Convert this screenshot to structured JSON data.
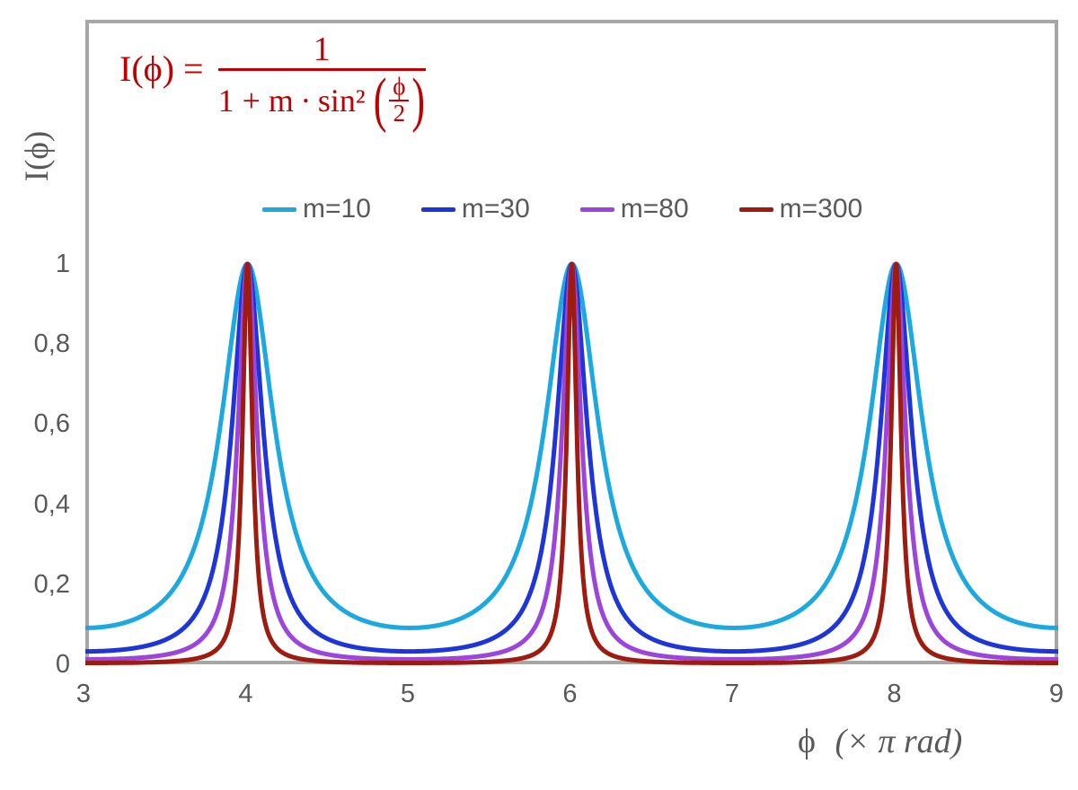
{
  "figure": {
    "formula": {
      "lhs": "I(ϕ) =",
      "numerator": "1",
      "den_prefix": "1 + m ∙ sin²",
      "inner_num": "ϕ",
      "inner_den": "2",
      "paren_open": "(",
      "paren_close": ")",
      "color": "#C00000"
    },
    "y_axis_title": "I(ϕ)",
    "x_axis_title": {
      "part_upright": "ϕ",
      "part_open": "(×",
      "part_italic": "π rad",
      "part_close": ")"
    }
  },
  "chart_data": {
    "type": "line",
    "title": "",
    "xlabel": "ϕ (× π rad)",
    "ylabel": "I(ϕ)",
    "function": "I(phi) = 1 / (1 + m * sin^2(phi/2)), x axis in units of pi rad",
    "xlim": [
      3,
      9
    ],
    "ylim": [
      0,
      1.61
    ],
    "x_ticks": [
      3,
      4,
      5,
      6,
      7,
      8,
      9
    ],
    "x_tick_labels": [
      "3",
      "4",
      "5",
      "6",
      "7",
      "8",
      "9"
    ],
    "y_ticks": [
      0,
      0.2,
      0.4,
      0.6,
      0.8,
      1
    ],
    "y_tick_labels": [
      "0",
      "0,2",
      "0,4",
      "0,6",
      "0,8",
      "1"
    ],
    "grid": false,
    "legend_position": "top-center",
    "peaks_at_x": [
      4,
      6,
      8
    ],
    "peak_value": 1,
    "series": [
      {
        "name": "m=10",
        "m": 10,
        "color": "#1CA9E0",
        "min_value": 0.091
      },
      {
        "name": "m=30",
        "m": 30,
        "color": "#1D35D9",
        "min_value": 0.032
      },
      {
        "name": "m=80",
        "m": 80,
        "color": "#9B45DD",
        "min_value": 0.012
      },
      {
        "name": "m=300",
        "m": 300,
        "color": "#9E1B10",
        "min_value": 0.003
      }
    ]
  },
  "style": {
    "frame_color": "#A6A6A6",
    "text_color": "#595959",
    "formula_color": "#C00000",
    "background": "#FFFFFF"
  }
}
